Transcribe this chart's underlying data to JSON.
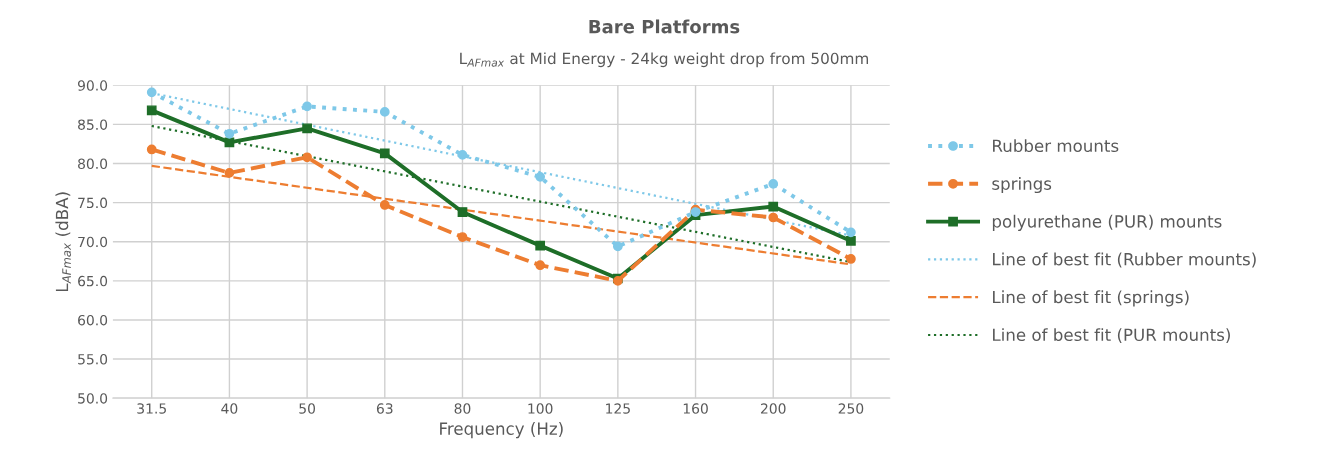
{
  "chart_data": {
    "type": "line",
    "title": "Bare Platforms",
    "subtitle": "L$_{AFmax}$ at Mid Energy - 24kg weight drop from 500mm",
    "xlabel": "Frequency (Hz)",
    "ylabel": "L$_{AFmax}$ (dBA)",
    "categories": [
      "31.5",
      "40",
      "50",
      "63",
      "80",
      "100",
      "125",
      "160",
      "200",
      "250"
    ],
    "ylim": [
      50,
      90
    ],
    "yticks": [
      {
        "value": 50,
        "label": "50.0"
      },
      {
        "value": 55,
        "label": "55.0"
      },
      {
        "value": 60,
        "label": "60.0"
      },
      {
        "value": 65,
        "label": "65.0"
      },
      {
        "value": 70,
        "label": "70.0"
      },
      {
        "value": 75,
        "label": "75.0"
      },
      {
        "value": 80,
        "label": "80.0"
      },
      {
        "value": 85,
        "label": "85.0"
      },
      {
        "value": 90,
        "label": "90.0"
      }
    ],
    "grid": true,
    "legend": "right",
    "series": [
      {
        "name": "Rubber mounts",
        "color": "#7ec8e8",
        "marker": "circle",
        "line_style": "dotted",
        "values": [
          89.1,
          83.8,
          87.3,
          86.6,
          81.1,
          78.3,
          69.4,
          73.8,
          77.4,
          71.2
        ]
      },
      {
        "name": "springs",
        "color": "#ed7d31",
        "marker": "circle",
        "line_style": "dashed",
        "values": [
          81.8,
          78.8,
          80.8,
          74.7,
          70.6,
          67.0,
          65.0,
          74.1,
          73.1,
          67.8
        ]
      },
      {
        "name": "polyurethane (PUR) mounts",
        "color": "#1e6e28",
        "marker": "square",
        "line_style": "solid",
        "values": [
          86.8,
          82.7,
          84.5,
          81.3,
          73.8,
          69.5,
          65.3,
          73.4,
          74.5,
          70.1
        ]
      },
      {
        "name": "Line of best fit (Rubber mounts)",
        "color": "#7ec8e8",
        "marker": "none",
        "line_style": "dotted",
        "x": [
          "31.5",
          "250"
        ],
        "values": [
          89.0,
          70.8
        ]
      },
      {
        "name": "Line of best fit (springs)",
        "color": "#ed7d31",
        "marker": "none",
        "line_style": "dashed",
        "x": [
          "31.5",
          "250"
        ],
        "values": [
          79.7,
          67.1
        ]
      },
      {
        "name": "Line of best fit (PUR mounts)",
        "color": "#1e6e28",
        "marker": "none",
        "line_style": "dotted",
        "x": [
          "31.5",
          "250"
        ],
        "values": [
          84.8,
          67.4
        ]
      }
    ]
  }
}
